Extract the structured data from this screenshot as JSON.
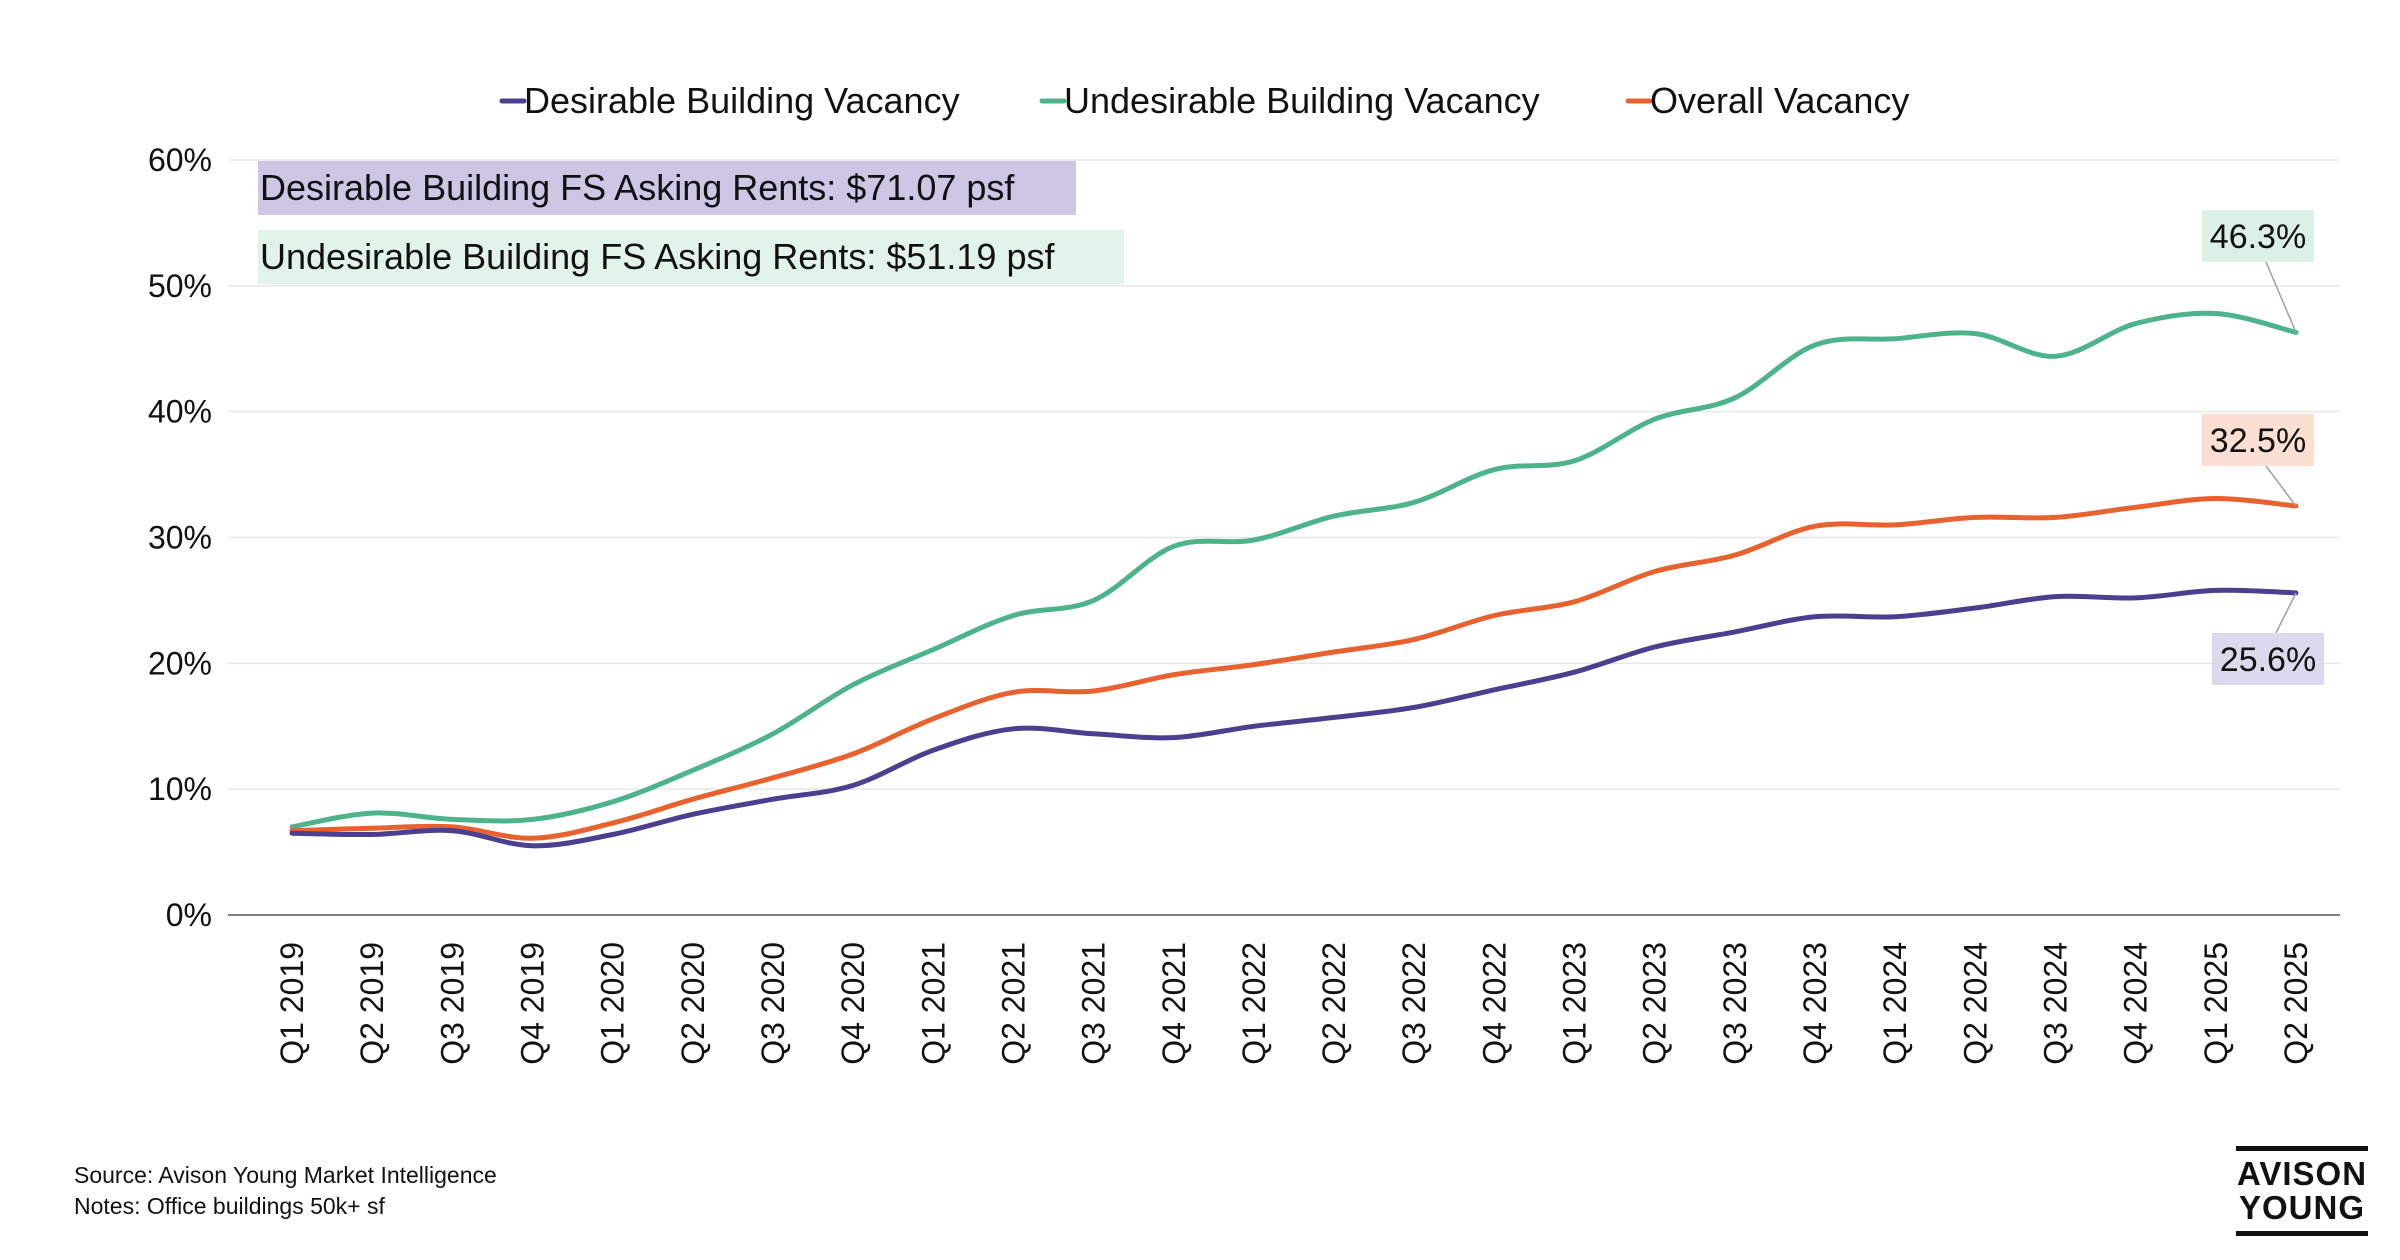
{
  "chart_data": {
    "type": "line",
    "categories": [
      "Q1 2019",
      "Q2 2019",
      "Q3 2019",
      "Q4 2019",
      "Q1 2020",
      "Q2 2020",
      "Q3 2020",
      "Q4 2020",
      "Q1 2021",
      "Q2 2021",
      "Q3 2021",
      "Q4 2021",
      "Q1 2022",
      "Q2 2022",
      "Q3 2022",
      "Q4 2022",
      "Q1 2023",
      "Q2 2023",
      "Q3 2023",
      "Q4 2023",
      "Q1 2024",
      "Q2 2024",
      "Q3 2024",
      "Q4 2024",
      "Q1 2025",
      "Q2 2025"
    ],
    "series": [
      {
        "name": "Desirable Building Vacancy",
        "color": "#4b3f8f",
        "values": [
          6.5,
          6.4,
          6.7,
          5.5,
          6.4,
          8.0,
          9.2,
          10.3,
          13.1,
          14.8,
          14.4,
          14.1,
          15.0,
          15.7,
          16.5,
          17.9,
          19.3,
          21.3,
          22.5,
          23.7,
          23.7,
          24.4,
          25.3,
          25.2,
          25.8,
          25.6
        ]
      },
      {
        "name": "Undesirable Building Vacancy",
        "color": "#4db38a",
        "values": [
          7.0,
          8.1,
          7.6,
          7.6,
          9.0,
          11.5,
          14.4,
          18.3,
          21.1,
          23.8,
          25.0,
          29.3,
          29.8,
          31.7,
          32.8,
          35.4,
          36.1,
          39.4,
          41.1,
          45.3,
          45.8,
          46.2,
          44.4,
          47.0,
          47.8,
          46.3
        ]
      },
      {
        "name": "Overall Vacancy",
        "color": "#e8622f",
        "values": [
          6.7,
          6.9,
          7.0,
          6.1,
          7.3,
          9.2,
          10.9,
          12.8,
          15.6,
          17.7,
          17.8,
          19.1,
          19.9,
          20.9,
          21.9,
          23.8,
          24.9,
          27.3,
          28.6,
          30.9,
          31.0,
          31.6,
          31.6,
          32.4,
          33.1,
          32.5
        ]
      }
    ],
    "y_ticks": [
      "0%",
      "10%",
      "20%",
      "30%",
      "40%",
      "50%",
      "60%"
    ],
    "ylim": [
      0,
      60
    ],
    "grid": true,
    "legend": "top-center",
    "end_labels": [
      {
        "text": "46.3%",
        "series": 1,
        "bg": "#dcf0e6"
      },
      {
        "text": "32.5%",
        "series": 2,
        "bg": "#fbdfd2"
      },
      {
        "text": "25.6%",
        "series": 0,
        "bg": "#dcd9ee"
      }
    ],
    "annotations": [
      {
        "text": "Desirable Building FS Asking Rents: $71.07 psf",
        "bg": "#cdc6e5"
      },
      {
        "text": "Undesirable Building FS Asking Rents: $51.19 psf",
        "bg": "#e1f3ea"
      }
    ]
  },
  "footer": {
    "source": "Source: Avison Young Market Intelligence",
    "notes": "Notes: Office buildings 50k+ sf"
  },
  "logo": {
    "line1": "AVISON",
    "line2": "YOUNG"
  }
}
